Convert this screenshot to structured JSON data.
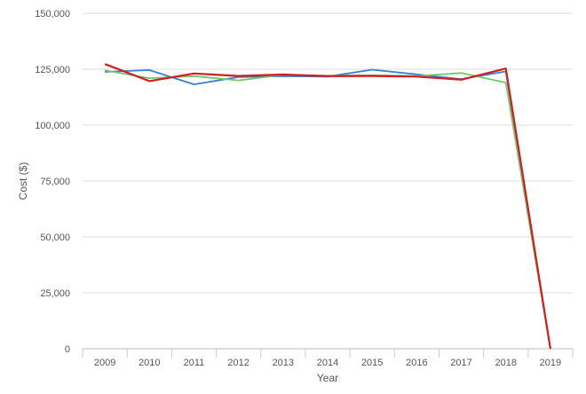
{
  "chart_data": {
    "type": "line",
    "title": "",
    "xlabel": "Year",
    "ylabel": "Cost ($)",
    "categories": [
      "2009",
      "2010",
      "2011",
      "2012",
      "2013",
      "2014",
      "2015",
      "2016",
      "2017",
      "2018",
      "2019"
    ],
    "ylim": [
      0,
      150000
    ],
    "yticks": [
      0,
      25000,
      50000,
      75000,
      100000,
      125000,
      150000
    ],
    "ytick_labels": [
      "0",
      "25,000",
      "50,000",
      "75,000",
      "100,000",
      "125,000",
      "150,000"
    ],
    "grid": true,
    "legend": "none",
    "series": [
      {
        "color": "#3a7fd0",
        "values": [
          123800,
          124600,
          118200,
          121500,
          121900,
          121700,
          124800,
          122700,
          120600,
          124000,
          0
        ]
      },
      {
        "color": "#6cc86a",
        "values": [
          124500,
          121000,
          121900,
          120000,
          122500,
          122100,
          122300,
          122000,
          123300,
          119000,
          0
        ]
      },
      {
        "color": "#d41c1c",
        "values": [
          127300,
          119700,
          123100,
          122000,
          122600,
          121900,
          122000,
          121700,
          120300,
          125300,
          0
        ]
      }
    ]
  }
}
